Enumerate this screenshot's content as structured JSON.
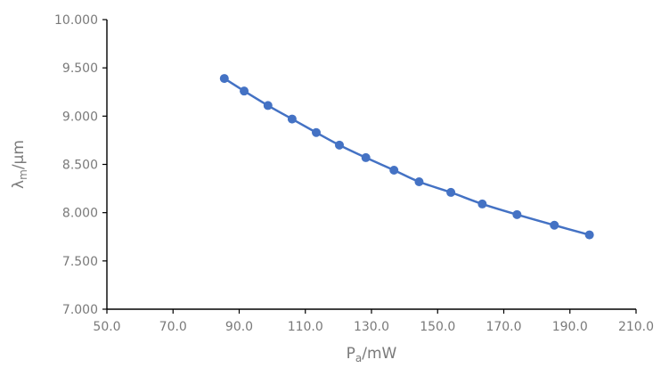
{
  "chart_data": {
    "type": "scatter",
    "title": "",
    "xlabel_main": "P",
    "xlabel_sub": "a",
    "xlabel_rest": "/mW",
    "ylabel_main": "λ",
    "ylabel_sub": "m",
    "ylabel_rest": "/μm",
    "xlim": [
      50.0,
      210.0
    ],
    "ylim": [
      7.0,
      10.0
    ],
    "x_ticks": [
      50,
      70,
      90,
      110,
      130,
      150,
      170,
      190,
      210
    ],
    "x_tick_labels": [
      "50.0",
      "70.0",
      "90.0",
      "110.0",
      "130.0",
      "150.0",
      "170.0",
      "190.0",
      "210.0"
    ],
    "y_ticks": [
      7.0,
      7.5,
      8.0,
      8.5,
      9.0,
      9.5,
      10.0
    ],
    "y_tick_labels": [
      "7.000",
      "7.500",
      "8.000",
      "8.500",
      "9.000",
      "9.500",
      "10.000"
    ],
    "grid": false,
    "legend": "none",
    "series": [
      {
        "color": "#4472C4",
        "x": [
          85.5,
          91.5,
          98.7,
          106.0,
          113.3,
          120.3,
          128.3,
          136.8,
          144.4,
          154.0,
          163.5,
          174.0,
          185.3,
          195.9
        ],
        "y": [
          9.39,
          9.26,
          9.11,
          8.97,
          8.83,
          8.7,
          8.57,
          8.44,
          8.32,
          8.21,
          8.09,
          7.98,
          7.87,
          7.77
        ]
      }
    ]
  }
}
